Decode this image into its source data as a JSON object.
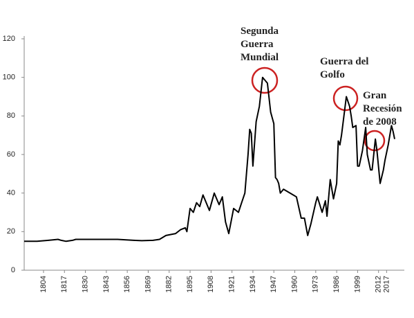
{
  "chart_data": {
    "type": "line",
    "x": [
      1792,
      1800,
      1807,
      1813,
      1815,
      1818,
      1822,
      1824,
      1850,
      1860,
      1865,
      1872,
      1876,
      1880,
      1886,
      1889,
      1892,
      1893,
      1895,
      1897,
      1899,
      1901,
      1903,
      1907,
      1910,
      1913,
      1915,
      1917,
      1919,
      1922,
      1925,
      1927,
      1929,
      1931,
      1932,
      1933,
      1934,
      1936,
      1938,
      1940,
      1943,
      1945,
      1947,
      1948,
      1949,
      1950,
      1951,
      1953,
      1959,
      1961,
      1964,
      1966,
      1968,
      1970,
      1973,
      1974,
      1977,
      1979,
      1980,
      1982,
      1984,
      1986,
      1987,
      1988,
      1989,
      1992,
      1994,
      1995,
      1996,
      1998,
      1999,
      2000,
      2002,
      2004,
      2005,
      2007,
      2008,
      2010,
      2011,
      2013,
      2015,
      2016,
      2018,
      2020,
      2021,
      2022
    ],
    "values": [
      15,
      15,
      15.5,
      16,
      15.5,
      15,
      15.5,
      16,
      16,
      15.5,
      15.3,
      15.5,
      16,
      18,
      19,
      21,
      22,
      20,
      32,
      30,
      35,
      33,
      39,
      31,
      40,
      34,
      38,
      25,
      19,
      32,
      30,
      35,
      40,
      60,
      73,
      71,
      54,
      77,
      85,
      100,
      97,
      82,
      76,
      48,
      47,
      45,
      40,
      42,
      39,
      38,
      27,
      27,
      18,
      24,
      35,
      38,
      30,
      36,
      28,
      47,
      37,
      45,
      67,
      65,
      70,
      90,
      85,
      80,
      74,
      75,
      54,
      54,
      62,
      74,
      60,
      52,
      52,
      68,
      62,
      45,
      52,
      57,
      65,
      75,
      72,
      68
    ],
    "color": "#000000",
    "xlim": [
      1792,
      2028
    ],
    "xticks": [
      1804,
      1817,
      1830,
      1843,
      1856,
      1869,
      1882,
      1895,
      1908,
      1921,
      1934,
      1947,
      1960,
      1973,
      1986,
      1999,
      2012,
      2017
    ],
    "ylim": [
      0,
      120
    ],
    "yticks": [
      0,
      20,
      40,
      60,
      80,
      100,
      120
    ],
    "annotations": [
      {
        "lines": [
          "Segunda",
          "Guerra",
          "Mundial"
        ],
        "color": "#cc2222"
      },
      {
        "lines": [
          "Guerra del",
          "Golfo"
        ],
        "color": "#cc2222"
      },
      {
        "lines": [
          "Gran",
          "Recesión",
          "de 2008"
        ],
        "color": "#cc2222"
      }
    ]
  }
}
